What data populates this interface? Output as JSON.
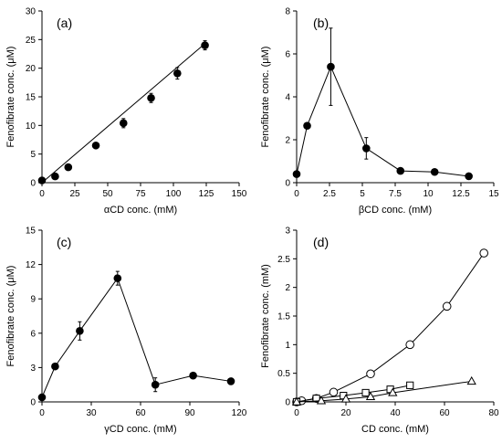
{
  "chart_data": [
    {
      "panel_label": "(a)",
      "type": "scatter",
      "xlabel": "αCD conc. (mM)",
      "ylabel": "Fenofibrate conc. (μM)",
      "xlim": [
        0,
        150
      ],
      "ylim": [
        0,
        30
      ],
      "xticks": [
        0,
        25,
        50,
        75,
        100,
        125,
        150
      ],
      "yticks": [
        0,
        5,
        10,
        15,
        20,
        25,
        30
      ],
      "grid": false,
      "series": [
        {
          "marker": "filled-circle",
          "line": "linear-fit",
          "x": [
            0,
            10,
            20,
            41,
            62,
            83,
            103,
            124
          ],
          "y": [
            0.4,
            1.1,
            2.7,
            6.5,
            10.4,
            14.8,
            19.1,
            24.0
          ],
          "err": [
            0.2,
            0.2,
            0.3,
            0.4,
            0.8,
            0.8,
            1.0,
            0.8
          ]
        }
      ],
      "fit_line": {
        "x": [
          0,
          124
        ],
        "y": [
          0.0,
          24.3
        ]
      }
    },
    {
      "panel_label": "(b)",
      "type": "line",
      "xlabel": "βCD conc. (mM)",
      "ylabel": "Fenofibrate conc. (μM)",
      "xlim": [
        0,
        15
      ],
      "ylim": [
        0,
        8
      ],
      "xticks": [
        0,
        2.5,
        5,
        7.5,
        10,
        12.5,
        15
      ],
      "yticks": [
        0,
        2,
        4,
        6,
        8
      ],
      "grid": false,
      "series": [
        {
          "marker": "filled-circle",
          "x": [
            0,
            0.8,
            2.6,
            5.3,
            7.9,
            10.5,
            13.1
          ],
          "y": [
            0.4,
            2.65,
            5.4,
            1.6,
            0.55,
            0.5,
            0.3
          ],
          "err": [
            0.05,
            0.1,
            1.8,
            0.5,
            0.05,
            0.05,
            0.05
          ]
        }
      ]
    },
    {
      "panel_label": "(c)",
      "type": "line",
      "xlabel": "γCD conc. (mM)",
      "ylabel": "Fenofibrate conc. (μM)",
      "xlim": [
        0,
        120
      ],
      "ylim": [
        0,
        15
      ],
      "xticks": [
        0,
        30,
        60,
        90,
        120
      ],
      "yticks": [
        0,
        3,
        6,
        9,
        12,
        15
      ],
      "grid": false,
      "series": [
        {
          "marker": "filled-circle",
          "x": [
            0,
            8,
            23,
            46,
            69,
            92,
            115
          ],
          "y": [
            0.4,
            3.1,
            6.2,
            10.8,
            1.5,
            2.3,
            1.8
          ],
          "err": [
            0.1,
            0.2,
            0.8,
            0.6,
            0.6,
            0.2,
            0.1
          ]
        }
      ]
    },
    {
      "panel_label": "(d)",
      "type": "line",
      "xlabel": "CD conc. (mM)",
      "ylabel": "Fenofibrate conc. (mM)",
      "xlim": [
        0,
        80
      ],
      "ylim": [
        0,
        3
      ],
      "xticks": [
        0,
        20,
        40,
        60,
        80
      ],
      "yticks": [
        0,
        0.5,
        1,
        1.5,
        2,
        2.5,
        3
      ],
      "grid": false,
      "series": [
        {
          "marker": "open-circle",
          "x": [
            0,
            2,
            8,
            15,
            30,
            46,
            61,
            76
          ],
          "y": [
            0.0,
            0.02,
            0.06,
            0.17,
            0.49,
            1.0,
            1.67,
            2.6
          ]
        },
        {
          "marker": "open-square",
          "x": [
            0,
            8,
            19,
            28,
            38,
            46
          ],
          "y": [
            0.0,
            0.06,
            0.11,
            0.16,
            0.22,
            0.29
          ]
        },
        {
          "marker": "open-triangle",
          "x": [
            0,
            10,
            20,
            30,
            39,
            71
          ],
          "y": [
            0.0,
            0.02,
            0.05,
            0.09,
            0.16,
            0.36
          ]
        }
      ]
    }
  ]
}
